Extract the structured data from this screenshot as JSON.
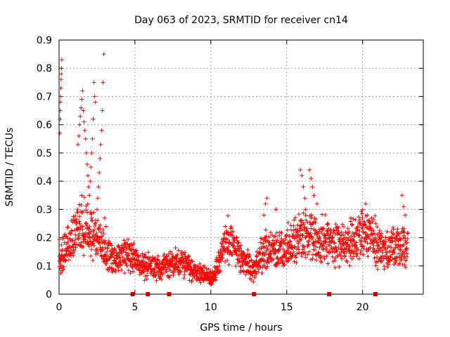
{
  "chart_data": {
    "type": "scatter",
    "title": "Day 063 of 2023, SRMTID for receiver cn14",
    "xlabel": "GPS time / hours",
    "ylabel": "SRMTID / TECUs",
    "xlim": [
      0,
      24
    ],
    "ylim": [
      0,
      0.9
    ],
    "x_ticks": [
      0,
      5,
      10,
      15,
      20
    ],
    "y_ticks": [
      0,
      0.1,
      0.2,
      0.3,
      0.4,
      0.5,
      0.6,
      0.7,
      0.8,
      0.9
    ],
    "x_tick_labels": [
      "0",
      "5",
      "10",
      "15",
      "20"
    ],
    "y_tick_labels": [
      "0",
      "0.1",
      "0.2",
      "0.3",
      "0.4",
      "0.5",
      "0.6",
      "0.7",
      "0.8",
      "0.9"
    ],
    "grid": true,
    "marker": "+",
    "color": "#ff0000",
    "gap_markers_x": [
      4.85,
      5.85,
      7.25,
      12.85,
      17.8,
      20.85
    ],
    "trend": [
      [
        0.0,
        0.13
      ],
      [
        0.3,
        0.15
      ],
      [
        0.6,
        0.17
      ],
      [
        0.9,
        0.2
      ],
      [
        1.2,
        0.24
      ],
      [
        1.5,
        0.25
      ],
      [
        1.8,
        0.24
      ],
      [
        2.1,
        0.23
      ],
      [
        2.4,
        0.21
      ],
      [
        2.7,
        0.18
      ],
      [
        3.0,
        0.16
      ],
      [
        3.3,
        0.14
      ],
      [
        3.6,
        0.12
      ],
      [
        4.0,
        0.13
      ],
      [
        4.5,
        0.14
      ],
      [
        5.0,
        0.12
      ],
      [
        5.5,
        0.1
      ],
      [
        6.0,
        0.1
      ],
      [
        6.5,
        0.09
      ],
      [
        7.0,
        0.1
      ],
      [
        7.5,
        0.11
      ],
      [
        8.0,
        0.11
      ],
      [
        8.5,
        0.1
      ],
      [
        9.0,
        0.08
      ],
      [
        9.5,
        0.07
      ],
      [
        10.0,
        0.06
      ],
      [
        10.5,
        0.1
      ],
      [
        11.0,
        0.2
      ],
      [
        11.5,
        0.17
      ],
      [
        12.0,
        0.13
      ],
      [
        12.4,
        0.11
      ],
      [
        12.8,
        0.08
      ],
      [
        13.2,
        0.13
      ],
      [
        13.6,
        0.16
      ],
      [
        14.0,
        0.15
      ],
      [
        14.5,
        0.15
      ],
      [
        15.0,
        0.17
      ],
      [
        15.5,
        0.19
      ],
      [
        16.0,
        0.2
      ],
      [
        16.5,
        0.22
      ],
      [
        17.0,
        0.18
      ],
      [
        17.5,
        0.2
      ],
      [
        18.0,
        0.18
      ],
      [
        18.5,
        0.17
      ],
      [
        19.0,
        0.18
      ],
      [
        19.5,
        0.19
      ],
      [
        20.0,
        0.22
      ],
      [
        20.5,
        0.22
      ],
      [
        21.0,
        0.17
      ],
      [
        21.5,
        0.15
      ],
      [
        22.0,
        0.17
      ],
      [
        22.5,
        0.16
      ],
      [
        23.0,
        0.17
      ]
    ],
    "spikes": [
      [
        0.05,
        0.57
      ],
      [
        0.07,
        0.62
      ],
      [
        0.08,
        0.65
      ],
      [
        0.09,
        0.68
      ],
      [
        0.1,
        0.7
      ],
      [
        0.12,
        0.73
      ],
      [
        0.13,
        0.76
      ],
      [
        0.15,
        0.78
      ],
      [
        0.16,
        0.8
      ],
      [
        0.18,
        0.83
      ],
      [
        1.25,
        0.53
      ],
      [
        1.3,
        0.56
      ],
      [
        1.35,
        0.6
      ],
      [
        1.4,
        0.63
      ],
      [
        1.45,
        0.66
      ],
      [
        1.5,
        0.69
      ],
      [
        1.55,
        0.72
      ],
      [
        1.6,
        0.65
      ],
      [
        1.65,
        0.61
      ],
      [
        1.7,
        0.58
      ],
      [
        1.75,
        0.55
      ],
      [
        1.8,
        0.5
      ],
      [
        1.85,
        0.46
      ],
      [
        1.9,
        0.42
      ],
      [
        1.95,
        0.38
      ],
      [
        2.0,
        0.35
      ],
      [
        2.05,
        0.4
      ],
      [
        2.1,
        0.45
      ],
      [
        2.15,
        0.5
      ],
      [
        2.2,
        0.55
      ],
      [
        2.25,
        0.62
      ],
      [
        2.3,
        0.75
      ],
      [
        2.35,
        0.7
      ],
      [
        2.4,
        0.68
      ],
      [
        2.5,
        0.3
      ],
      [
        2.55,
        0.34
      ],
      [
        2.6,
        0.38
      ],
      [
        2.65,
        0.43
      ],
      [
        2.7,
        0.48
      ],
      [
        2.75,
        0.53
      ],
      [
        2.8,
        0.58
      ],
      [
        2.85,
        0.65
      ],
      [
        2.9,
        0.75
      ],
      [
        2.95,
        0.85
      ],
      [
        3.0,
        0.27
      ],
      [
        3.1,
        0.24
      ],
      [
        13.5,
        0.28
      ],
      [
        13.6,
        0.32
      ],
      [
        13.7,
        0.34
      ],
      [
        14.3,
        0.3
      ],
      [
        15.9,
        0.44
      ],
      [
        16.0,
        0.42
      ],
      [
        16.1,
        0.38
      ],
      [
        16.2,
        0.34
      ],
      [
        16.25,
        0.3
      ],
      [
        16.5,
        0.44
      ],
      [
        16.6,
        0.41
      ],
      [
        16.7,
        0.38
      ],
      [
        16.8,
        0.35
      ],
      [
        17.0,
        0.32
      ],
      [
        20.0,
        0.3
      ],
      [
        20.2,
        0.32
      ],
      [
        20.3,
        0.28
      ],
      [
        22.6,
        0.35
      ],
      [
        22.7,
        0.31
      ],
      [
        22.8,
        0.28
      ]
    ]
  }
}
